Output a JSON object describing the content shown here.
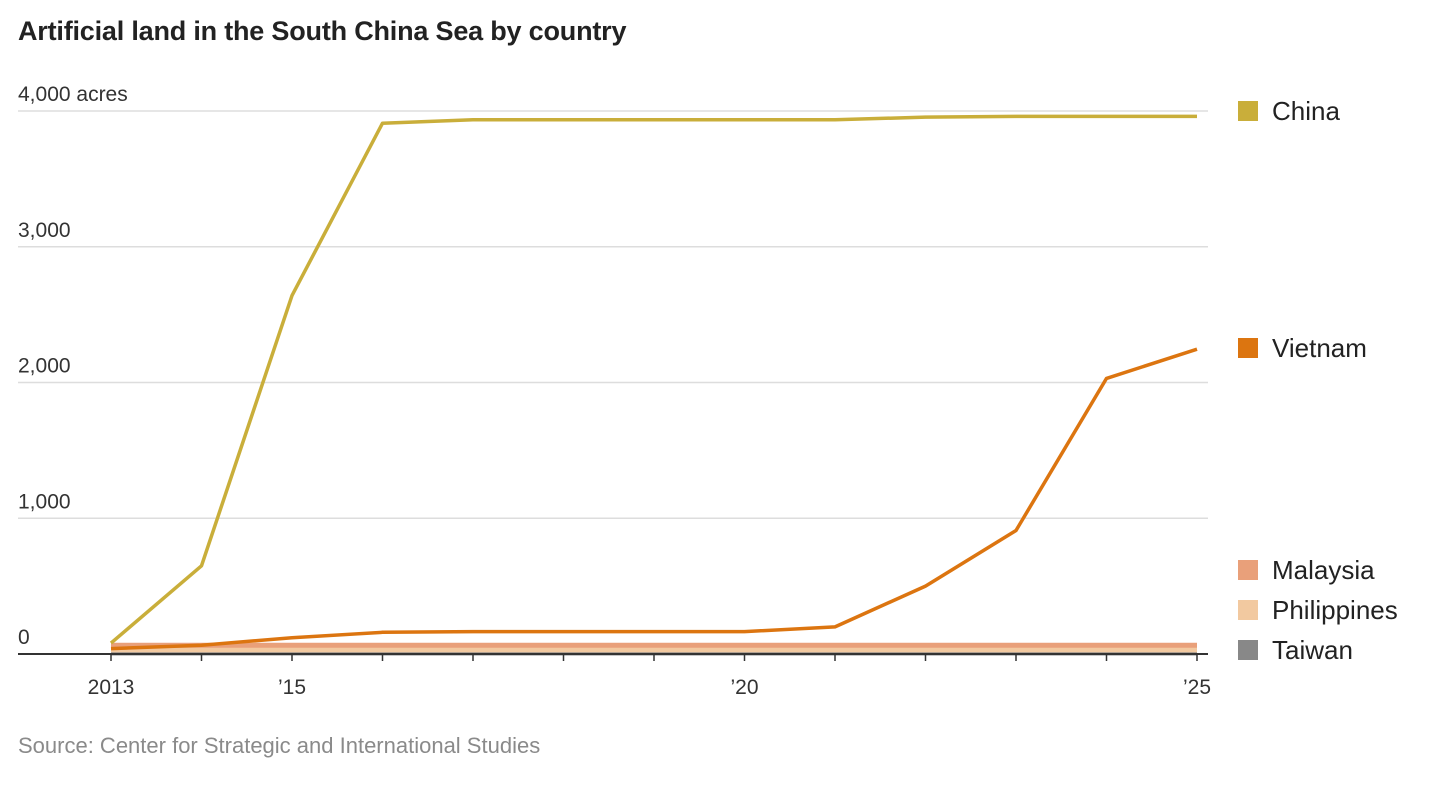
{
  "title": "Artificial land in the South China Sea by country",
  "source": "Source: Center for Strategic and International Studies",
  "chart_data": {
    "type": "line",
    "title": "Artificial land in the South China Sea by country",
    "xlabel": "",
    "ylabel": "acres",
    "x": [
      2013,
      2014,
      2015,
      2016,
      2017,
      2018,
      2019,
      2020,
      2021,
      2022,
      2023,
      2024,
      2025
    ],
    "xlim": [
      2013,
      2025
    ],
    "ylim": [
      0,
      4000
    ],
    "x_ticks": [
      {
        "value": 2013,
        "label": "2013"
      },
      {
        "value": 2015,
        "label": "’15"
      },
      {
        "value": 2020,
        "label": "’20"
      },
      {
        "value": 2025,
        "label": "’25"
      }
    ],
    "y_ticks": [
      {
        "value": 0,
        "label": "0"
      },
      {
        "value": 1000,
        "label": "1,000"
      },
      {
        "value": 2000,
        "label": "2,000"
      },
      {
        "value": 3000,
        "label": "3,000"
      },
      {
        "value": 4000,
        "label": "4,000 acres"
      }
    ],
    "grid": true,
    "legend_position": "right",
    "series": [
      {
        "name": "Taiwan",
        "color": "#888888",
        "values": [
          7,
          7,
          7,
          7,
          7,
          7,
          7,
          7,
          7,
          7,
          7,
          7,
          7
        ]
      },
      {
        "name": "Philippines",
        "color": "#f2c9a0",
        "values": [
          30,
          30,
          30,
          30,
          30,
          30,
          30,
          30,
          30,
          30,
          30,
          30,
          30
        ]
      },
      {
        "name": "Malaysia",
        "color": "#e9a07a",
        "values": [
          65,
          65,
          65,
          65,
          65,
          65,
          65,
          65,
          65,
          65,
          65,
          65,
          65
        ]
      },
      {
        "name": "Vietnam",
        "color": "#dc7510",
        "values": [
          40,
          65,
          120,
          160,
          165,
          165,
          165,
          165,
          200,
          500,
          910,
          2030,
          2245
        ]
      },
      {
        "name": "China",
        "color": "#c9ae3a",
        "values": [
          80,
          650,
          2640,
          3910,
          3935,
          3935,
          3935,
          3935,
          3935,
          3955,
          3960,
          3960,
          3960
        ]
      }
    ],
    "legend": [
      {
        "name": "China",
        "color": "#c9ae3a"
      },
      {
        "name": "Vietnam",
        "color": "#dc7510"
      },
      {
        "name": "Malaysia",
        "color": "#e9a07a"
      },
      {
        "name": "Philippines",
        "color": "#f2c9a0"
      },
      {
        "name": "Taiwan",
        "color": "#888888"
      }
    ]
  }
}
